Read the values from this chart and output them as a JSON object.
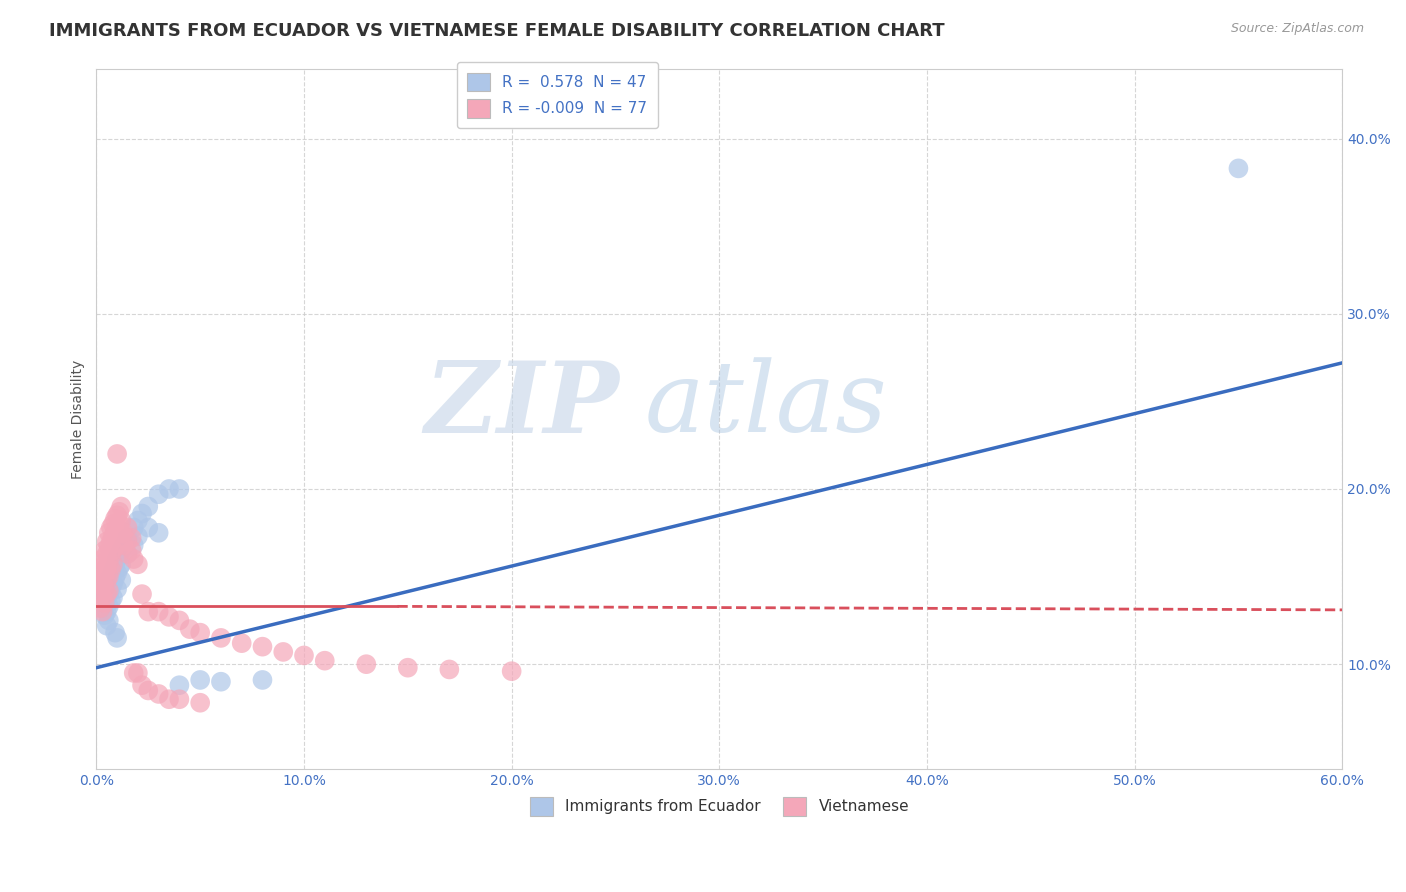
{
  "title": "IMMIGRANTS FROM ECUADOR VS VIETNAMESE FEMALE DISABILITY CORRELATION CHART",
  "source": "Source: ZipAtlas.com",
  "ylabel": "Female Disability",
  "xlabel": "",
  "xlim": [
    0.0,
    0.6
  ],
  "ylim": [
    0.04,
    0.44
  ],
  "xticks": [
    0.0,
    0.1,
    0.2,
    0.3,
    0.4,
    0.5,
    0.6
  ],
  "yticks": [
    0.1,
    0.2,
    0.3,
    0.4
  ],
  "ytick_labels": [
    "10.0%",
    "20.0%",
    "30.0%",
    "40.0%"
  ],
  "xtick_labels": [
    "0.0%",
    "10.0%",
    "20.0%",
    "30.0%",
    "40.0%",
    "50.0%",
    "60.0%"
  ],
  "ecuador_color": "#aec6e8",
  "vietnamese_color": "#f4a7b9",
  "ecuador_line_color": "#3a6cbf",
  "vietnamese_line_color": "#d94f5c",
  "legend_ecuador_R": "0.578",
  "legend_ecuador_N": "47",
  "legend_vietnamese_R": "-0.009",
  "legend_vietnamese_N": "77",
  "watermark_zip": "ZIP",
  "watermark_atlas": "atlas",
  "background_color": "#ffffff",
  "grid_color": "#cccccc",
  "title_fontsize": 13,
  "axis_label_fontsize": 10,
  "tick_fontsize": 10,
  "ecuador_line_x0": 0.0,
  "ecuador_line_y0": 0.098,
  "ecuador_line_x1": 0.6,
  "ecuador_line_y1": 0.272,
  "viet_line_solid_x0": 0.0,
  "viet_line_solid_y0": 0.133,
  "viet_line_solid_x1": 0.145,
  "viet_line_solid_y1": 0.133,
  "viet_line_dash_x0": 0.145,
  "viet_line_dash_y0": 0.133,
  "viet_line_dash_x1": 0.6,
  "viet_line_dash_y1": 0.131,
  "ecuador_dots": [
    [
      0.003,
      0.14
    ],
    [
      0.004,
      0.135
    ],
    [
      0.004,
      0.128
    ],
    [
      0.005,
      0.145
    ],
    [
      0.005,
      0.138
    ],
    [
      0.005,
      0.13
    ],
    [
      0.005,
      0.122
    ],
    [
      0.006,
      0.148
    ],
    [
      0.006,
      0.14
    ],
    [
      0.006,
      0.133
    ],
    [
      0.006,
      0.125
    ],
    [
      0.007,
      0.15
    ],
    [
      0.007,
      0.143
    ],
    [
      0.007,
      0.136
    ],
    [
      0.008,
      0.153
    ],
    [
      0.008,
      0.146
    ],
    [
      0.008,
      0.138
    ],
    [
      0.009,
      0.156
    ],
    [
      0.009,
      0.149
    ],
    [
      0.009,
      0.118
    ],
    [
      0.01,
      0.16
    ],
    [
      0.01,
      0.152
    ],
    [
      0.01,
      0.143
    ],
    [
      0.01,
      0.115
    ],
    [
      0.011,
      0.162
    ],
    [
      0.011,
      0.155
    ],
    [
      0.012,
      0.165
    ],
    [
      0.012,
      0.157
    ],
    [
      0.012,
      0.148
    ],
    [
      0.013,
      0.167
    ],
    [
      0.015,
      0.172
    ],
    [
      0.015,
      0.163
    ],
    [
      0.018,
      0.178
    ],
    [
      0.018,
      0.168
    ],
    [
      0.02,
      0.182
    ],
    [
      0.02,
      0.173
    ],
    [
      0.022,
      0.186
    ],
    [
      0.025,
      0.19
    ],
    [
      0.025,
      0.178
    ],
    [
      0.03,
      0.175
    ],
    [
      0.03,
      0.197
    ],
    [
      0.035,
      0.2
    ],
    [
      0.04,
      0.2
    ],
    [
      0.04,
      0.088
    ],
    [
      0.05,
      0.091
    ],
    [
      0.06,
      0.09
    ],
    [
      0.08,
      0.091
    ],
    [
      0.55,
      0.383
    ]
  ],
  "vietnamese_dots": [
    [
      0.002,
      0.155
    ],
    [
      0.002,
      0.148
    ],
    [
      0.002,
      0.14
    ],
    [
      0.002,
      0.132
    ],
    [
      0.003,
      0.16
    ],
    [
      0.003,
      0.153
    ],
    [
      0.003,
      0.146
    ],
    [
      0.003,
      0.138
    ],
    [
      0.003,
      0.13
    ],
    [
      0.004,
      0.165
    ],
    [
      0.004,
      0.158
    ],
    [
      0.004,
      0.15
    ],
    [
      0.004,
      0.143
    ],
    [
      0.004,
      0.135
    ],
    [
      0.005,
      0.17
    ],
    [
      0.005,
      0.163
    ],
    [
      0.005,
      0.155
    ],
    [
      0.005,
      0.148
    ],
    [
      0.005,
      0.14
    ],
    [
      0.006,
      0.175
    ],
    [
      0.006,
      0.167
    ],
    [
      0.006,
      0.158
    ],
    [
      0.006,
      0.15
    ],
    [
      0.006,
      0.142
    ],
    [
      0.007,
      0.178
    ],
    [
      0.007,
      0.17
    ],
    [
      0.007,
      0.162
    ],
    [
      0.007,
      0.154
    ],
    [
      0.008,
      0.18
    ],
    [
      0.008,
      0.173
    ],
    [
      0.008,
      0.165
    ],
    [
      0.008,
      0.157
    ],
    [
      0.009,
      0.183
    ],
    [
      0.009,
      0.175
    ],
    [
      0.009,
      0.167
    ],
    [
      0.01,
      0.185
    ],
    [
      0.01,
      0.178
    ],
    [
      0.01,
      0.22
    ],
    [
      0.011,
      0.187
    ],
    [
      0.011,
      0.18
    ],
    [
      0.012,
      0.19
    ],
    [
      0.012,
      0.182
    ],
    [
      0.012,
      0.175
    ],
    [
      0.013,
      0.175
    ],
    [
      0.013,
      0.168
    ],
    [
      0.015,
      0.178
    ],
    [
      0.015,
      0.17
    ],
    [
      0.015,
      0.163
    ],
    [
      0.017,
      0.172
    ],
    [
      0.017,
      0.165
    ],
    [
      0.018,
      0.16
    ],
    [
      0.018,
      0.095
    ],
    [
      0.02,
      0.157
    ],
    [
      0.02,
      0.095
    ],
    [
      0.022,
      0.14
    ],
    [
      0.022,
      0.088
    ],
    [
      0.025,
      0.13
    ],
    [
      0.025,
      0.085
    ],
    [
      0.03,
      0.13
    ],
    [
      0.03,
      0.083
    ],
    [
      0.035,
      0.127
    ],
    [
      0.035,
      0.08
    ],
    [
      0.04,
      0.125
    ],
    [
      0.04,
      0.08
    ],
    [
      0.045,
      0.12
    ],
    [
      0.05,
      0.118
    ],
    [
      0.05,
      0.078
    ],
    [
      0.06,
      0.115
    ],
    [
      0.07,
      0.112
    ],
    [
      0.08,
      0.11
    ],
    [
      0.09,
      0.107
    ],
    [
      0.1,
      0.105
    ],
    [
      0.11,
      0.102
    ],
    [
      0.13,
      0.1
    ],
    [
      0.15,
      0.098
    ],
    [
      0.17,
      0.097
    ],
    [
      0.2,
      0.096
    ]
  ]
}
